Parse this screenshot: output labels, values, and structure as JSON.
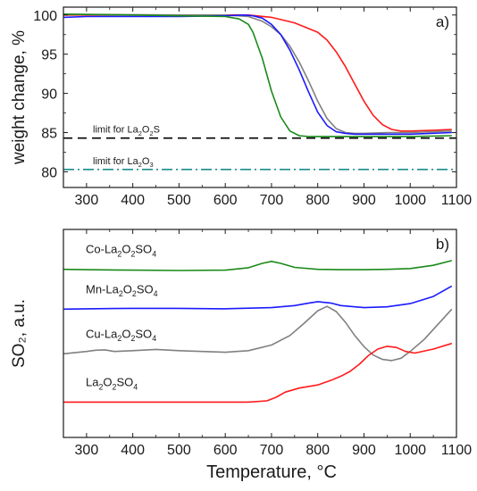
{
  "x_axis_label": "Temperature, °C",
  "chart_data": [
    {
      "type": "line",
      "panel_label": "a)",
      "xlabel": "",
      "ylabel": "weight change, %",
      "xlim": [
        250,
        1100
      ],
      "ylim": [
        78,
        101
      ],
      "xticks": [
        300,
        400,
        500,
        600,
        700,
        800,
        900,
        1000,
        1100
      ],
      "yticks": [
        80,
        85,
        90,
        95,
        100
      ],
      "grid": false,
      "reference_lines": [
        {
          "label_parts": [
            "limit for La",
            "2",
            "O",
            "2",
            "S"
          ],
          "y": 84.3,
          "color": "#000000",
          "dash": "dash"
        },
        {
          "label_parts": [
            "limit for La",
            "2",
            "O",
            "3"
          ],
          "y": 80.3,
          "color": "#1b8e8e",
          "dash": "dashdot"
        }
      ],
      "series": [
        {
          "color": "#ff1a1a",
          "x": [
            250,
            500,
            600,
            650,
            700,
            750,
            800,
            820,
            840,
            860,
            880,
            900,
            920,
            940,
            960,
            980,
            1000,
            1050,
            1090
          ],
          "y": [
            100.0,
            100.0,
            100.0,
            100.0,
            99.7,
            99.0,
            97.8,
            96.8,
            95.3,
            93.4,
            91.2,
            89.0,
            87.2,
            86.0,
            85.4,
            85.2,
            85.2,
            85.3,
            85.4
          ]
        },
        {
          "color": "#808080",
          "x": [
            250,
            500,
            600,
            650,
            680,
            700,
            720,
            740,
            760,
            780,
            800,
            820,
            840,
            860,
            880,
            900,
            950,
            1000,
            1090
          ],
          "y": [
            100.1,
            100.0,
            100.0,
            99.8,
            99.2,
            98.5,
            97.5,
            96.0,
            94.0,
            91.6,
            89.0,
            86.8,
            85.5,
            85.0,
            84.9,
            84.9,
            85.0,
            85.0,
            85.2
          ]
        },
        {
          "color": "#1a1aff",
          "x": [
            250,
            300,
            400,
            500,
            600,
            640,
            660,
            680,
            700,
            720,
            740,
            760,
            780,
            800,
            820,
            840,
            860,
            880,
            900,
            1000,
            1090
          ],
          "y": [
            99.7,
            99.8,
            99.8,
            99.8,
            99.9,
            100.0,
            99.9,
            99.6,
            98.8,
            97.5,
            95.5,
            93.0,
            90.2,
            87.6,
            85.9,
            85.1,
            84.9,
            84.8,
            84.8,
            84.8,
            85.0
          ]
        },
        {
          "color": "#1a8a1a",
          "x": [
            250,
            400,
            500,
            600,
            630,
            650,
            660,
            680,
            700,
            720,
            740,
            760,
            780,
            800,
            900,
            1000,
            1090
          ],
          "y": [
            100.1,
            100.0,
            99.9,
            99.8,
            99.5,
            98.8,
            97.8,
            94.5,
            90.3,
            87.0,
            85.2,
            84.6,
            84.5,
            84.5,
            84.5,
            84.5,
            84.6
          ]
        }
      ]
    },
    {
      "type": "line",
      "panel_label": "b)",
      "xlabel": "Temperature, °C",
      "ylabel": "SO₂, a.u.",
      "xlim": [
        250,
        1100
      ],
      "xticks": [
        300,
        400,
        500,
        600,
        700,
        800,
        900,
        1000,
        1100
      ],
      "grid": false,
      "series_labels": [
        {
          "label_parts": [
            "Co-La",
            "2",
            "O",
            "2",
            "SO",
            "4"
          ],
          "color": "#1a8a1a"
        },
        {
          "label_parts": [
            "Mn-La",
            "2",
            "O",
            "2",
            "SO",
            "4"
          ],
          "color": "#1a1aff"
        },
        {
          "label_parts": [
            "Cu-La",
            "2",
            "O",
            "2",
            "SO",
            "4"
          ],
          "color": "#808080"
        },
        {
          "label_parts": [
            "La",
            "2",
            "O",
            "2",
            "SO",
            "4"
          ],
          "color": "#ff1a1a"
        }
      ],
      "series": [
        {
          "color": "#1a8a1a",
          "x": [
            250,
            300,
            400,
            500,
            600,
            650,
            680,
            700,
            720,
            750,
            800,
            850,
            900,
            950,
            1000,
            1050,
            1090
          ],
          "y": [
            3.78,
            3.77,
            3.76,
            3.75,
            3.76,
            3.82,
            3.93,
            3.98,
            3.93,
            3.83,
            3.78,
            3.77,
            3.77,
            3.78,
            3.8,
            3.88,
            4.0
          ]
        },
        {
          "color": "#1a1aff",
          "x": [
            250,
            300,
            400,
            500,
            600,
            700,
            750,
            780,
            800,
            830,
            850,
            900,
            950,
            1000,
            1050,
            1090
          ],
          "y": [
            2.78,
            2.79,
            2.8,
            2.8,
            2.79,
            2.82,
            2.87,
            2.93,
            2.97,
            2.93,
            2.87,
            2.82,
            2.84,
            2.92,
            3.1,
            3.36
          ]
        },
        {
          "color": "#808080",
          "x": [
            250,
            300,
            320,
            340,
            360,
            400,
            450,
            500,
            600,
            650,
            700,
            740,
            770,
            800,
            820,
            840,
            860,
            880,
            900,
            920,
            940,
            960,
            980,
            1000,
            1030,
            1060,
            1090
          ],
          "y": [
            1.66,
            1.72,
            1.75,
            1.76,
            1.72,
            1.74,
            1.77,
            1.74,
            1.7,
            1.74,
            1.88,
            2.12,
            2.42,
            2.74,
            2.85,
            2.72,
            2.45,
            2.12,
            1.84,
            1.63,
            1.52,
            1.49,
            1.55,
            1.72,
            2.02,
            2.4,
            2.78
          ]
        },
        {
          "color": "#ff1a1a",
          "x": [
            250,
            400,
            500,
            600,
            650,
            690,
            710,
            730,
            760,
            800,
            830,
            850,
            870,
            890,
            910,
            930,
            950,
            970,
            990,
            1010,
            1050,
            1090
          ],
          "y": [
            0.45,
            0.45,
            0.45,
            0.45,
            0.45,
            0.48,
            0.57,
            0.7,
            0.8,
            0.88,
            1.0,
            1.1,
            1.22,
            1.4,
            1.62,
            1.78,
            1.85,
            1.82,
            1.72,
            1.68,
            1.78,
            1.92
          ]
        }
      ]
    }
  ]
}
